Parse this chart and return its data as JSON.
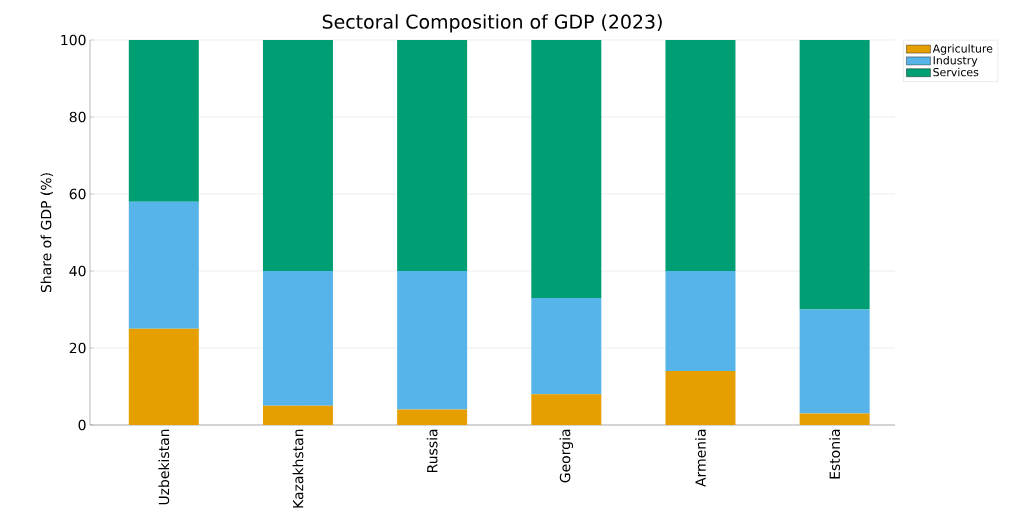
{
  "chart_data": {
    "type": "bar",
    "title": "Sectoral Composition of GDP (2023)",
    "ylabel": "Share of GDP (%)",
    "categories": [
      "Uzbekistan",
      "Kazakhstan",
      "Russia",
      "Georgia",
      "Armenia",
      "Estonia"
    ],
    "stacked": true,
    "ylim": [
      0,
      100
    ],
    "yticks": [
      0,
      20,
      40,
      60,
      80,
      100
    ],
    "grid": true,
    "legend": "top right",
    "series": [
      {
        "name": "Agriculture",
        "color": "#e69f00",
        "values": [
          25,
          5,
          4,
          8,
          14,
          3
        ]
      },
      {
        "name": "Industry",
        "color": "#56b4e9",
        "values": [
          33,
          35,
          36,
          25,
          26,
          27
        ]
      },
      {
        "name": "Services",
        "color": "#009e73",
        "values": [
          42,
          60,
          60,
          67,
          60,
          70
        ]
      }
    ]
  }
}
